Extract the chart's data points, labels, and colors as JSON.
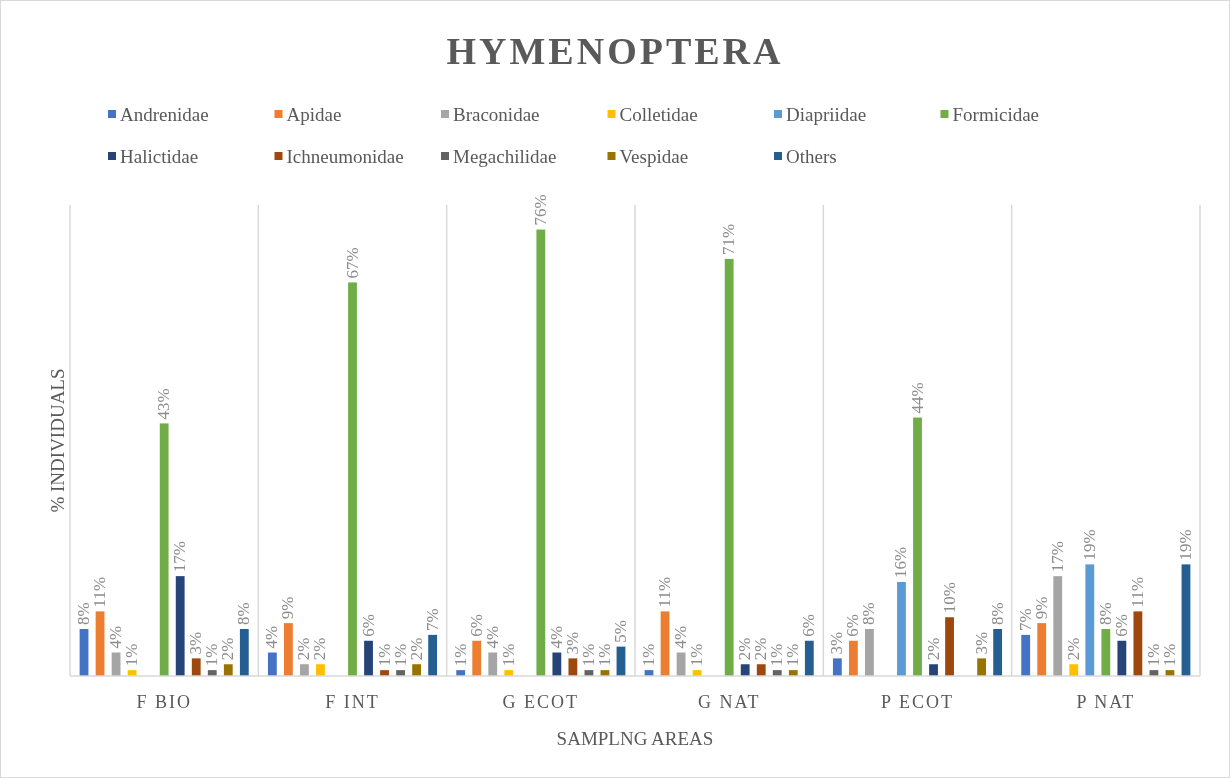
{
  "chart_data": {
    "type": "bar",
    "title": "HYMENOPTERA",
    "xlabel": "SAMPLNG AREAS",
    "ylabel": "% INDIVIDUALS",
    "categories": [
      "F BIO",
      "F INT",
      "G ECOT",
      "G NAT",
      "P ECOT",
      "P NAT"
    ],
    "grid": "x",
    "legend": "top",
    "series": [
      {
        "name": "Andrenidae",
        "color": "#4472c4",
        "values": [
          8,
          4,
          1,
          1,
          3,
          7
        ],
        "value_labels": [
          "8%",
          "4%",
          "1%",
          "1%",
          "3%",
          "7%"
        ]
      },
      {
        "name": "Apidae",
        "color": "#ed7d31",
        "values": [
          11,
          9,
          6,
          11,
          6,
          9
        ],
        "value_labels": [
          "11%",
          "9%",
          "6%",
          "11%",
          "6%",
          "9%"
        ]
      },
      {
        "name": "Braconidae",
        "color": "#a5a5a5",
        "values": [
          4,
          2,
          4,
          4,
          8,
          17
        ],
        "value_labels": [
          "4%",
          "2%",
          "4%",
          "4%",
          "8%",
          "17%"
        ]
      },
      {
        "name": "Colletidae",
        "color": "#ffc000",
        "values": [
          1,
          2,
          1,
          1,
          null,
          2
        ],
        "value_labels": [
          "1%",
          "2%",
          "1%",
          "1%",
          null,
          "2%"
        ]
      },
      {
        "name": "Diapriidae",
        "color": "#5b9bd5",
        "values": [
          null,
          null,
          null,
          null,
          16,
          19
        ],
        "value_labels": [
          null,
          null,
          null,
          null,
          "16%",
          "19%"
        ]
      },
      {
        "name": "Formicidae",
        "color": "#70ad47",
        "values": [
          43,
          67,
          76,
          71,
          44,
          8
        ],
        "value_labels": [
          "43%",
          "67%",
          "76%",
          "71%",
          "44%",
          "8%"
        ]
      },
      {
        "name": "Halictidae",
        "color": "#264478",
        "values": [
          17,
          6,
          4,
          2,
          2,
          6
        ],
        "value_labels": [
          "17%",
          "6%",
          "4%",
          "2%",
          "2%",
          "6%"
        ]
      },
      {
        "name": "Ichneumonidae",
        "color": "#9e480e",
        "values": [
          3,
          1,
          3,
          2,
          10,
          11
        ],
        "value_labels": [
          "3%",
          "1%",
          "3%",
          "2%",
          "10%",
          "11%"
        ]
      },
      {
        "name": "Megachilidae",
        "color": "#636363",
        "values": [
          1,
          1,
          1,
          1,
          null,
          1
        ],
        "value_labels": [
          "1%",
          "1%",
          "1%",
          "1%",
          null,
          "1%"
        ]
      },
      {
        "name": "Vespidae",
        "color": "#997300",
        "values": [
          2,
          2,
          1,
          1,
          3,
          1
        ],
        "value_labels": [
          "2%",
          "2%",
          "1%",
          "1%",
          "3%",
          "1%"
        ]
      },
      {
        "name": "Others",
        "color": "#255e91",
        "values": [
          8,
          7,
          5,
          6,
          8,
          19
        ],
        "value_labels": [
          "8%",
          "7%",
          "5%",
          "6%",
          "8%",
          "19%"
        ]
      }
    ]
  }
}
